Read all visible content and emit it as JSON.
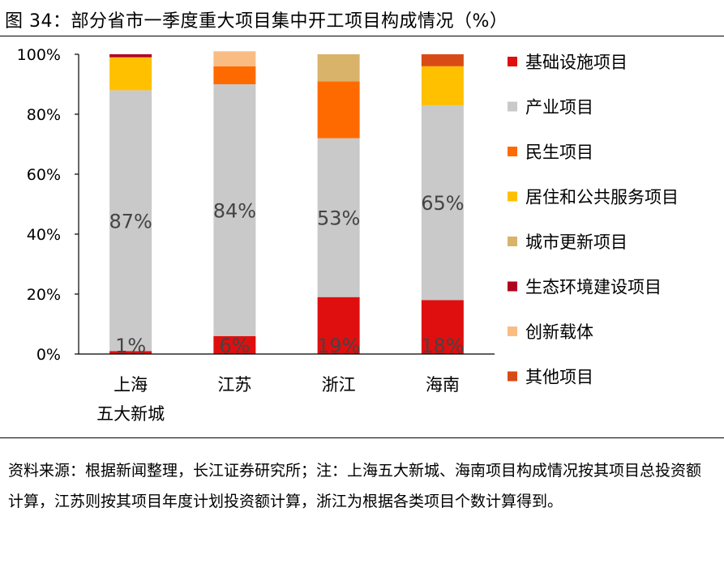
{
  "title": "图 34：部分省市一季度重大项目集中开工项目构成情况（%）",
  "source_note": "资料来源：根据新闻整理，长江证券研究所；注：上海五大新城、海南项目构成情况按其项目总投资额计算，江苏则按其项目年度计划投资额计算，浙江为根据各类项目个数计算得到。",
  "chart_data": {
    "type": "bar",
    "stacked": true,
    "title": "",
    "xlabel": "",
    "ylabel": "",
    "ylim": [
      0,
      100
    ],
    "yticks": [
      "0%",
      "20%",
      "40%",
      "60%",
      "80%",
      "100%"
    ],
    "ytick_values": [
      0,
      20,
      40,
      60,
      80,
      100
    ],
    "categories": [
      {
        "lines": [
          "上海",
          "五大新城"
        ]
      },
      {
        "lines": [
          "江苏"
        ]
      },
      {
        "lines": [
          "浙江"
        ]
      },
      {
        "lines": [
          "海南"
        ]
      }
    ],
    "series": [
      {
        "name": "基础设施项目",
        "color": "#e00f0f",
        "values": [
          1,
          6,
          19,
          18
        ],
        "labels": [
          "1%",
          "6%",
          "19%",
          "18%"
        ]
      },
      {
        "name": "产业项目",
        "color": "#c9c9c9",
        "values": [
          87,
          84,
          53,
          65
        ],
        "labels": [
          "87%",
          "84%",
          "53%",
          "65%"
        ]
      },
      {
        "name": "民生项目",
        "color": "#ff6a00",
        "values": [
          0,
          6,
          19,
          0
        ]
      },
      {
        "name": "居住和公共服务项目",
        "color": "#ffc000",
        "values": [
          11,
          0,
          0,
          13
        ]
      },
      {
        "name": "城市更新项目",
        "color": "#d9b36a",
        "values": [
          0,
          0,
          9,
          0
        ]
      },
      {
        "name": "生态环境建设项目",
        "color": "#b0001e",
        "values": [
          1,
          0,
          0,
          0
        ]
      },
      {
        "name": "创新载体",
        "color": "#f9bd84",
        "values": [
          0,
          5,
          0,
          0
        ]
      },
      {
        "name": "其他项目",
        "color": "#d94b16",
        "values": [
          0,
          0,
          0,
          4
        ]
      }
    ],
    "legend_position": "right"
  }
}
